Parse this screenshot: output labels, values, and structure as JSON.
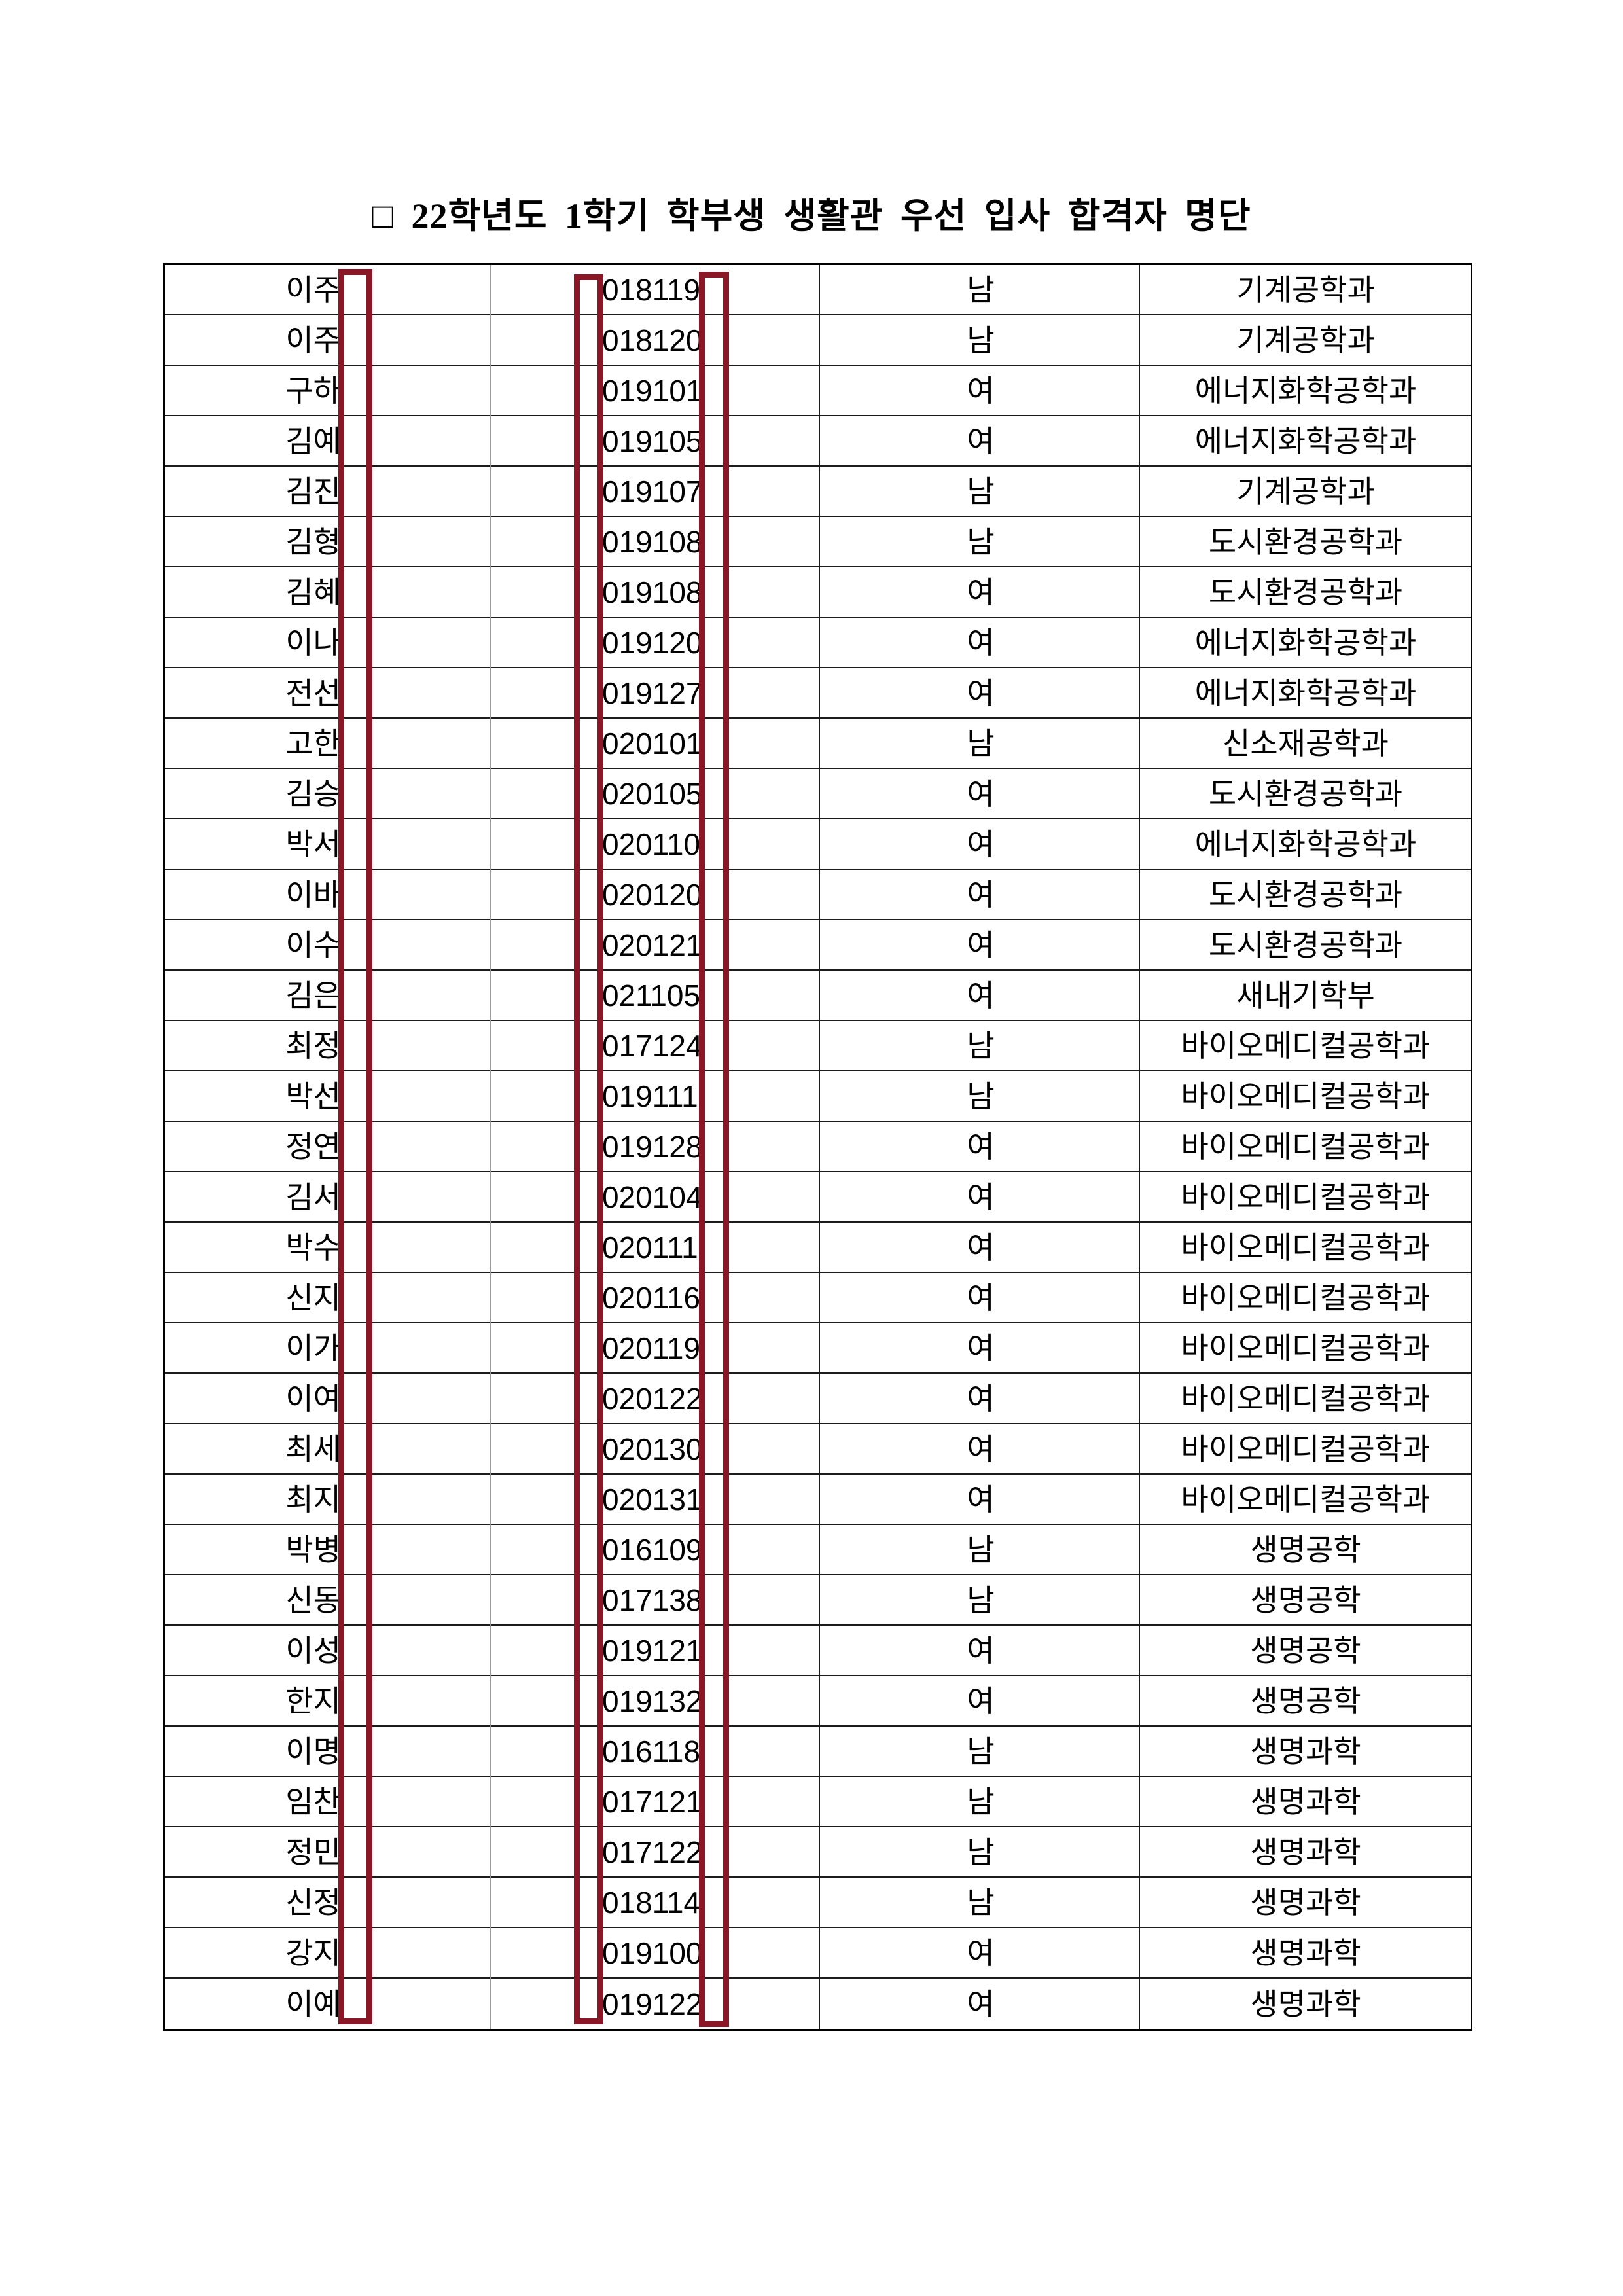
{
  "page": {
    "background": "#ffffff",
    "title": "□ 22학년도 1학기 학부생 생활관 우선 입사 합격자 명단"
  },
  "table": {
    "columns": [
      "name",
      "student_id",
      "gender",
      "department"
    ],
    "redaction_color": "#8a1626",
    "rows": [
      {
        "name": "이주",
        "id": "018119",
        "gender": "남",
        "dept": "기계공학과"
      },
      {
        "name": "이주",
        "id": "018120",
        "gender": "남",
        "dept": "기계공학과"
      },
      {
        "name": "구하",
        "id": "019101",
        "gender": "여",
        "dept": "에너지화학공학과"
      },
      {
        "name": "김예",
        "id": "019105",
        "gender": "여",
        "dept": "에너지화학공학과"
      },
      {
        "name": "김진",
        "id": "019107",
        "gender": "남",
        "dept": "기계공학과"
      },
      {
        "name": "김형",
        "id": "019108",
        "gender": "남",
        "dept": "도시환경공학과"
      },
      {
        "name": "김혜",
        "id": "019108",
        "gender": "여",
        "dept": "도시환경공학과"
      },
      {
        "name": "이나",
        "id": "019120",
        "gender": "여",
        "dept": "에너지화학공학과"
      },
      {
        "name": "전선",
        "id": "019127",
        "gender": "여",
        "dept": "에너지화학공학과"
      },
      {
        "name": "고한",
        "id": "020101",
        "gender": "남",
        "dept": "신소재공학과"
      },
      {
        "name": "김승",
        "id": "020105",
        "gender": "여",
        "dept": "도시환경공학과"
      },
      {
        "name": "박서",
        "id": "020110",
        "gender": "여",
        "dept": "에너지화학공학과"
      },
      {
        "name": "이바",
        "id": "020120",
        "gender": "여",
        "dept": "도시환경공학과"
      },
      {
        "name": "이수",
        "id": "020121",
        "gender": "여",
        "dept": "도시환경공학과"
      },
      {
        "name": "김은",
        "id": "021105",
        "gender": "여",
        "dept": "새내기학부"
      },
      {
        "name": "최정",
        "id": "017124",
        "gender": "남",
        "dept": "바이오메디컬공학과"
      },
      {
        "name": "박선",
        "id": "019111",
        "gender": "남",
        "dept": "바이오메디컬공학과"
      },
      {
        "name": "정연",
        "id": "019128",
        "gender": "여",
        "dept": "바이오메디컬공학과"
      },
      {
        "name": "김서",
        "id": "020104",
        "gender": "여",
        "dept": "바이오메디컬공학과"
      },
      {
        "name": "박수",
        "id": "020111",
        "gender": "여",
        "dept": "바이오메디컬공학과"
      },
      {
        "name": "신지",
        "id": "020116",
        "gender": "여",
        "dept": "바이오메디컬공학과"
      },
      {
        "name": "이가",
        "id": "020119",
        "gender": "여",
        "dept": "바이오메디컬공학과"
      },
      {
        "name": "이여",
        "id": "020122",
        "gender": "여",
        "dept": "바이오메디컬공학과"
      },
      {
        "name": "최세",
        "id": "020130",
        "gender": "여",
        "dept": "바이오메디컬공학과"
      },
      {
        "name": "최지",
        "id": "020131",
        "gender": "여",
        "dept": "바이오메디컬공학과"
      },
      {
        "name": "박병",
        "id": "016109",
        "gender": "남",
        "dept": "생명공학"
      },
      {
        "name": "신동",
        "id": "017138",
        "gender": "남",
        "dept": "생명공학"
      },
      {
        "name": "이성",
        "id": "019121",
        "gender": "여",
        "dept": "생명공학"
      },
      {
        "name": "한지",
        "id": "019132",
        "gender": "여",
        "dept": "생명공학"
      },
      {
        "name": "이명",
        "id": "016118",
        "gender": "남",
        "dept": "생명과학"
      },
      {
        "name": "임찬",
        "id": "017121",
        "gender": "남",
        "dept": "생명과학"
      },
      {
        "name": "정민",
        "id": "017122",
        "gender": "남",
        "dept": "생명과학"
      },
      {
        "name": "신정",
        "id": "018114",
        "gender": "남",
        "dept": "생명과학"
      },
      {
        "name": "강지",
        "id": "019100",
        "gender": "여",
        "dept": "생명과학"
      },
      {
        "name": "이예",
        "id": "019122",
        "gender": "여",
        "dept": "생명과학"
      }
    ]
  }
}
